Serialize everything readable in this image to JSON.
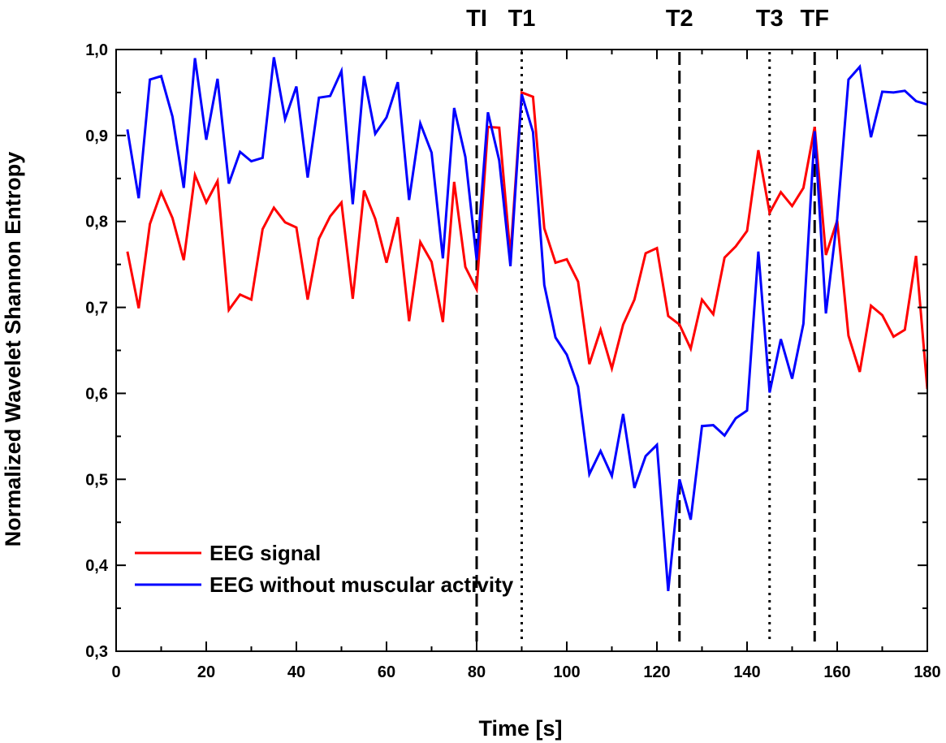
{
  "chart_data": {
    "type": "line",
    "title": "",
    "xlabel": "Time [s]",
    "ylabel": "Normalized  Wavelet  Shannon  Entropy",
    "xlim": [
      0,
      180
    ],
    "ylim": [
      0.3,
      1.0
    ],
    "x_ticks": [
      0,
      20,
      40,
      60,
      80,
      100,
      120,
      140,
      160,
      180
    ],
    "y_ticks": [
      0.3,
      0.4,
      0.5,
      0.6,
      0.7,
      0.8,
      0.9,
      1.0
    ],
    "x_tick_labels": [
      "0",
      "20",
      "40",
      "60",
      "80",
      "100",
      "120",
      "140",
      "160",
      "180"
    ],
    "y_tick_labels": [
      "0,3",
      "0,4",
      "0,5",
      "0,6",
      "0,7",
      "0,8",
      "0,9",
      "1,0"
    ],
    "grid": false,
    "legend_position": "bottom-left",
    "x": [
      2.5,
      5,
      7.5,
      10,
      12.5,
      15,
      17.5,
      20,
      22.5,
      25,
      27.5,
      30,
      32.5,
      35,
      37.5,
      40,
      42.5,
      45,
      47.5,
      50,
      52.5,
      55,
      57.5,
      60,
      62.5,
      65,
      67.5,
      70,
      72.5,
      75,
      77.5,
      80,
      82.5,
      85,
      87.5,
      90,
      92.5,
      95,
      97.5,
      100,
      102.5,
      105,
      107.5,
      110,
      112.5,
      115,
      117.5,
      120,
      122.5,
      125,
      127.5,
      130,
      132.5,
      135,
      137.5,
      140,
      142.5,
      145,
      147.5,
      150,
      152.5,
      155,
      157.5,
      160,
      162.5,
      165,
      167.5,
      170,
      172.5,
      175,
      177.5,
      180
    ],
    "series": [
      {
        "name": "EEG signal",
        "color": "#ff0000",
        "values": [
          0.765,
          0.699,
          0.797,
          0.834,
          0.804,
          0.755,
          0.854,
          0.822,
          0.847,
          0.697,
          0.715,
          0.709,
          0.791,
          0.816,
          0.799,
          0.793,
          0.709,
          0.78,
          0.806,
          0.822,
          0.71,
          0.836,
          0.803,
          0.752,
          0.805,
          0.684,
          0.776,
          0.753,
          0.683,
          0.846,
          0.747,
          0.721,
          0.91,
          0.909,
          0.76,
          0.95,
          0.945,
          0.792,
          0.752,
          0.756,
          0.73,
          0.634,
          0.674,
          0.629,
          0.68,
          0.709,
          0.763,
          0.769,
          0.69,
          0.68,
          0.652,
          0.709,
          0.692,
          0.758,
          0.771,
          0.789,
          0.883,
          0.81,
          0.834,
          0.818,
          0.839,
          0.91,
          0.761,
          0.801,
          0.667,
          0.625,
          0.702,
          0.691,
          0.666,
          0.674,
          0.76,
          0.605
        ]
      },
      {
        "name": "EEG without muscular activity",
        "color": "#0000ff",
        "values": [
          0.907,
          0.827,
          0.965,
          0.969,
          0.922,
          0.839,
          0.99,
          0.895,
          0.966,
          0.844,
          0.881,
          0.87,
          0.874,
          0.991,
          0.919,
          0.957,
          0.851,
          0.944,
          0.946,
          0.975,
          0.82,
          0.969,
          0.902,
          0.921,
          0.962,
          0.825,
          0.914,
          0.88,
          0.757,
          0.932,
          0.875,
          0.755,
          0.927,
          0.871,
          0.748,
          0.948,
          0.904,
          0.726,
          0.665,
          0.645,
          0.608,
          0.506,
          0.533,
          0.504,
          0.576,
          0.49,
          0.527,
          0.54,
          0.37,
          0.5,
          0.453,
          0.562,
          0.563,
          0.551,
          0.571,
          0.58,
          0.765,
          0.601,
          0.663,
          0.617,
          0.681,
          0.905,
          0.693,
          0.803,
          0.965,
          0.98,
          0.898,
          0.951,
          0.95,
          0.952,
          0.94,
          0.936
        ]
      }
    ],
    "markers": [
      {
        "label": "TI",
        "x": 80,
        "style": "dashed"
      },
      {
        "label": "T1",
        "x": 90,
        "style": "dotted"
      },
      {
        "label": "T2",
        "x": 125,
        "style": "dashed"
      },
      {
        "label": "T3",
        "x": 145,
        "style": "dotted"
      },
      {
        "label": "TF",
        "x": 155,
        "style": "dashed"
      }
    ]
  }
}
